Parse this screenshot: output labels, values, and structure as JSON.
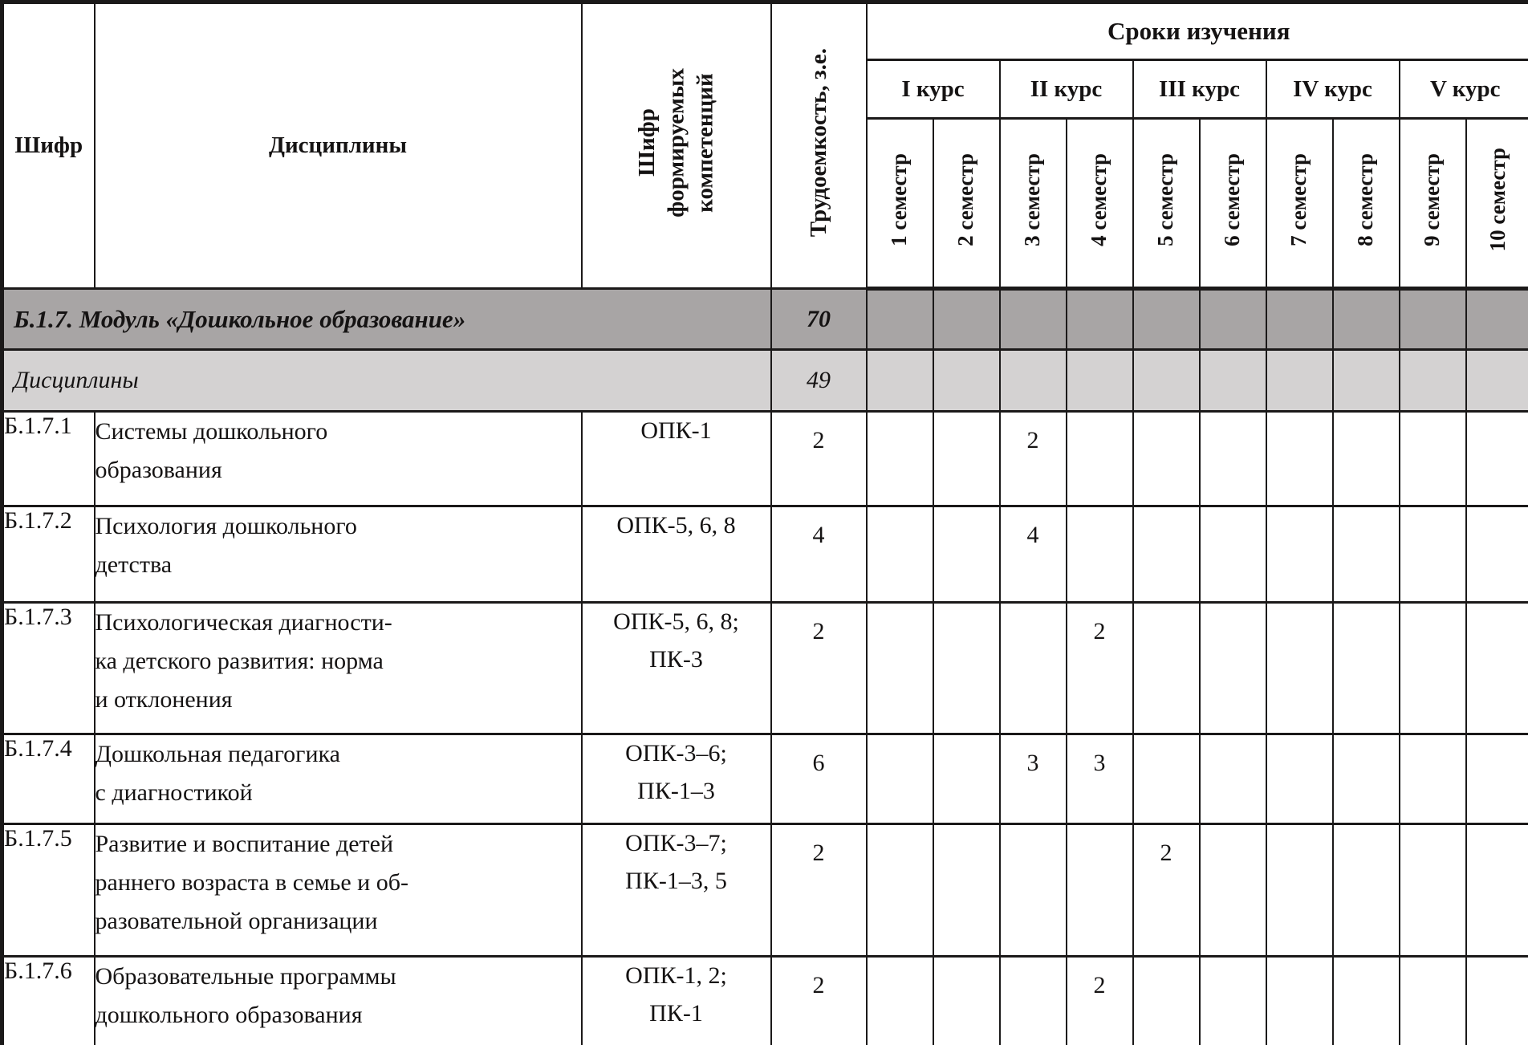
{
  "table": {
    "header": {
      "code_label": "Шифр",
      "disciplines_label": "Дисциплины",
      "competencies_label": "Шифр\nформируемых\nкомпетенций",
      "workload_label": "Трудоемкость, з.е.",
      "period_label": "Сроки изучения",
      "courses": [
        "I курс",
        "II курс",
        "III курс",
        "IV курс",
        "V курс"
      ],
      "semesters": [
        "1 семестр",
        "2 семестр",
        "3 семестр",
        "4 семестр",
        "5 семестр",
        "6 семестр",
        "7 семестр",
        "8 семестр",
        "9 семестр",
        "10 семестр"
      ]
    },
    "summary_rows": [
      {
        "label": "Б.1.7. Модуль «Дошкольное образование»",
        "workload": "70",
        "style": "module"
      },
      {
        "label": "Дисциплины",
        "workload": "49",
        "style": "section"
      }
    ],
    "rows": [
      {
        "code": "Б.1.7.1",
        "name": "Системы дошкольного\nобразования",
        "competencies": "ОПК-1",
        "workload": "2",
        "semesters": [
          "",
          "",
          "2",
          "",
          "",
          "",
          "",
          "",
          "",
          ""
        ]
      },
      {
        "code": "Б.1.7.2",
        "name": "Психология дошкольного\nдетства",
        "competencies": "ОПК-5, 6, 8",
        "workload": "4",
        "semesters": [
          "",
          "",
          "4",
          "",
          "",
          "",
          "",
          "",
          "",
          ""
        ]
      },
      {
        "code": "Б.1.7.3",
        "name": "Психологическая диагности-\nка детского развития: норма\nи отклонения",
        "competencies": "ОПК-5, 6, 8;\nПК-3",
        "workload": "2",
        "semesters": [
          "",
          "",
          "",
          "2",
          "",
          "",
          "",
          "",
          "",
          ""
        ]
      },
      {
        "code": "Б.1.7.4",
        "name": "Дошкольная педагогика\nс диагностикой",
        "competencies": "ОПК-3–6;\nПК-1–3",
        "workload": "6",
        "semesters": [
          "",
          "",
          "3",
          "3",
          "",
          "",
          "",
          "",
          "",
          ""
        ]
      },
      {
        "code": "Б.1.7.5",
        "name": "Развитие и воспитание детей\nраннего возраста в семье и об-\nразовательной организации",
        "competencies": "ОПК-3–7;\nПК-1–3, 5",
        "workload": "2",
        "semesters": [
          "",
          "",
          "",
          "",
          "2",
          "",
          "",
          "",
          "",
          ""
        ]
      },
      {
        "code": "Б.1.7.6",
        "name": "Образовательные программы\nдошкольного образования",
        "competencies": "ОПК-1, 2;\nПК-1",
        "workload": "2",
        "semesters": [
          "",
          "",
          "",
          "2",
          "",
          "",
          "",
          "",
          "",
          ""
        ]
      }
    ]
  },
  "colors": {
    "module_row_bg": "#a8a5a5",
    "section_row_bg": "#d4d2d2",
    "border": "#1b1919",
    "text": "#151313"
  }
}
